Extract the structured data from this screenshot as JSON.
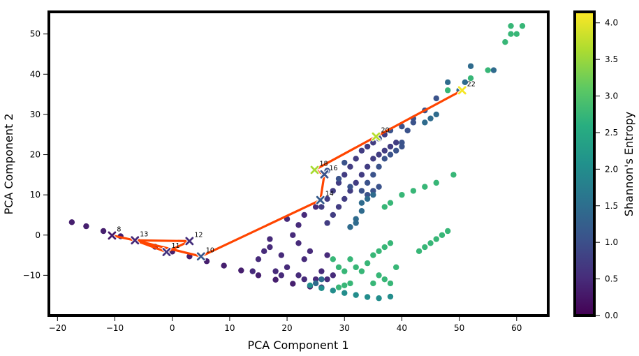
{
  "chart_data": {
    "type": "scatter",
    "xlabel": "PCA Component 1",
    "ylabel": "PCA Component 2",
    "xlim": [
      -21.5,
      65.5
    ],
    "ylim": [
      -20,
      55.5
    ],
    "xticks": [
      -20,
      -10,
      0,
      10,
      20,
      30,
      40,
      50,
      60
    ],
    "yticks": [
      -10,
      0,
      10,
      20,
      30,
      40,
      50
    ],
    "colorbar": {
      "label": "Shannon's Entropy",
      "min": 0.0,
      "max": 4.15,
      "ticks": [
        0.0,
        0.5,
        1.0,
        1.5,
        2.0,
        2.5,
        3.0,
        3.5,
        4.0
      ],
      "colormap": "viridis"
    },
    "path_color": "#ff4500",
    "path": [
      {
        "label": "8",
        "x": -10.5,
        "y": -0.1,
        "entropy": 0.3
      },
      {
        "label": "13",
        "x": -6.5,
        "y": -1.3,
        "entropy": 0.45
      },
      {
        "label": "11",
        "x": -1.0,
        "y": -4.2,
        "entropy": 0.6
      },
      {
        "label": "12",
        "x": 3.0,
        "y": -1.5,
        "entropy": 0.55
      },
      {
        "label": "10",
        "x": 5.0,
        "y": -5.3,
        "entropy": 1.1
      },
      {
        "label": "14",
        "x": 25.8,
        "y": 8.7,
        "entropy": 1.2
      },
      {
        "label": "16",
        "x": 26.5,
        "y": 15.1,
        "entropy": 1.05
      },
      {
        "label": "18",
        "x": 24.8,
        "y": 16.2,
        "entropy": 3.6
      },
      {
        "label": "20",
        "x": 35.5,
        "y": 24.5,
        "entropy": 3.7
      },
      {
        "label": "22",
        "x": 50.5,
        "y": 36.0,
        "entropy": 4.1
      }
    ],
    "path_order": [
      "8",
      "13",
      "11",
      "12",
      "13",
      "10",
      "14",
      "16",
      "18",
      "20",
      "22"
    ],
    "point_groups": [
      {
        "entropy": 0.35,
        "points": [
          [
            -17.5,
            3.2
          ],
          [
            -15,
            2.2
          ],
          [
            -12,
            1
          ],
          [
            -9,
            -0.3
          ],
          [
            -6,
            -1.6
          ],
          [
            -3,
            -2.9
          ],
          [
            0,
            -4.1
          ],
          [
            3,
            -5.3
          ],
          [
            6,
            -6.5
          ],
          [
            9,
            -7.6
          ],
          [
            12,
            -8.8
          ],
          [
            15,
            -10
          ],
          [
            18,
            -11.1
          ],
          [
            21,
            -12.1
          ],
          [
            24,
            -12.8
          ],
          [
            26,
            -13
          ]
        ]
      },
      {
        "entropy": 2.0,
        "points": [
          [
            24,
            -12.5
          ],
          [
            26,
            -13.2
          ],
          [
            28,
            -13.8
          ],
          [
            30,
            -14.4
          ],
          [
            32,
            -14.9
          ],
          [
            34,
            -15.4
          ],
          [
            36,
            -15.7
          ],
          [
            38,
            -15.3
          ]
        ]
      },
      {
        "entropy": 0.5,
        "points": [
          [
            15,
            -6
          ],
          [
            17,
            -3
          ],
          [
            18,
            -9
          ],
          [
            19,
            -5
          ],
          [
            20,
            -8
          ],
          [
            22,
            -2
          ],
          [
            22,
            -10
          ],
          [
            23,
            -6
          ],
          [
            24,
            -4
          ],
          [
            26,
            -9
          ],
          [
            27,
            -5
          ],
          [
            28,
            -10
          ],
          [
            20,
            4
          ],
          [
            21,
            0
          ],
          [
            22,
            2.5
          ],
          [
            23,
            5
          ],
          [
            25,
            7
          ],
          [
            17,
            -1
          ],
          [
            16,
            -4
          ],
          [
            23,
            -11
          ],
          [
            25,
            -11
          ],
          [
            14,
            -9
          ],
          [
            19,
            -10
          ],
          [
            27,
            -11
          ]
        ]
      },
      {
        "entropy": 0.75,
        "points": [
          [
            26,
            7
          ],
          [
            27,
            9
          ],
          [
            28,
            11
          ],
          [
            29,
            13
          ],
          [
            30,
            15
          ],
          [
            31,
            17
          ],
          [
            32,
            19
          ],
          [
            33,
            21
          ],
          [
            34,
            22
          ],
          [
            35,
            23
          ],
          [
            36,
            24
          ],
          [
            37,
            25
          ],
          [
            27,
            3
          ],
          [
            28,
            5
          ],
          [
            29,
            7
          ],
          [
            30,
            9
          ],
          [
            31,
            11
          ],
          [
            32,
            13
          ],
          [
            33,
            15
          ],
          [
            34,
            17
          ],
          [
            35,
            19
          ],
          [
            36,
            20
          ],
          [
            37,
            21
          ],
          [
            38,
            22
          ],
          [
            39,
            23
          ]
        ]
      },
      {
        "entropy": 1.05,
        "points": [
          [
            36,
            24
          ],
          [
            38,
            26
          ],
          [
            40,
            27
          ],
          [
            42,
            29
          ],
          [
            44,
            31
          ],
          [
            46,
            34
          ],
          [
            33,
            11
          ],
          [
            34,
            13
          ],
          [
            35,
            15
          ],
          [
            36,
            17
          ],
          [
            37,
            19
          ],
          [
            38,
            20
          ],
          [
            39,
            21
          ],
          [
            40,
            22
          ],
          [
            27,
            16
          ],
          [
            29,
            14
          ],
          [
            30,
            18
          ],
          [
            31,
            12
          ],
          [
            34,
            10
          ],
          [
            35,
            11
          ],
          [
            36,
            12
          ],
          [
            40,
            23
          ],
          [
            42,
            28
          ],
          [
            41,
            26
          ]
        ]
      },
      {
        "entropy": 1.45,
        "points": [
          [
            44,
            28
          ],
          [
            45,
            29
          ],
          [
            46,
            30
          ],
          [
            48,
            38
          ],
          [
            50,
            36
          ],
          [
            51,
            38
          ],
          [
            52,
            42
          ],
          [
            56,
            41
          ],
          [
            33,
            8
          ],
          [
            34,
            9
          ],
          [
            35,
            10
          ],
          [
            32,
            4
          ],
          [
            33,
            6
          ],
          [
            31,
            2
          ],
          [
            32,
            3
          ],
          [
            25,
            -12
          ],
          [
            26,
            -11
          ]
        ]
      },
      {
        "entropy": 2.75,
        "points": [
          [
            58,
            48
          ],
          [
            59,
            50
          ],
          [
            60,
            50
          ],
          [
            61,
            52
          ],
          [
            59,
            52
          ],
          [
            55,
            41
          ],
          [
            52,
            39
          ],
          [
            48,
            36
          ],
          [
            38,
            8
          ],
          [
            40,
            10
          ],
          [
            42,
            11
          ],
          [
            44,
            12
          ],
          [
            46,
            13
          ],
          [
            49,
            15
          ],
          [
            37,
            7
          ],
          [
            44,
            -3
          ],
          [
            45,
            -2
          ],
          [
            46,
            -1
          ],
          [
            47,
            0
          ],
          [
            48,
            1
          ],
          [
            43,
            -4
          ],
          [
            34,
            -7
          ],
          [
            35,
            -5
          ],
          [
            36,
            -4
          ],
          [
            37,
            -3
          ],
          [
            38,
            -2
          ],
          [
            31,
            -6
          ],
          [
            32,
            -8
          ],
          [
            33,
            -9
          ],
          [
            28,
            -6
          ],
          [
            29,
            -8
          ],
          [
            30,
            -9
          ],
          [
            37,
            -11
          ],
          [
            38,
            -12
          ],
          [
            36,
            -10
          ],
          [
            39,
            -8
          ],
          [
            35,
            -12
          ],
          [
            29,
            -13
          ],
          [
            30,
            -12.5
          ],
          [
            31,
            -12
          ]
        ]
      }
    ]
  }
}
